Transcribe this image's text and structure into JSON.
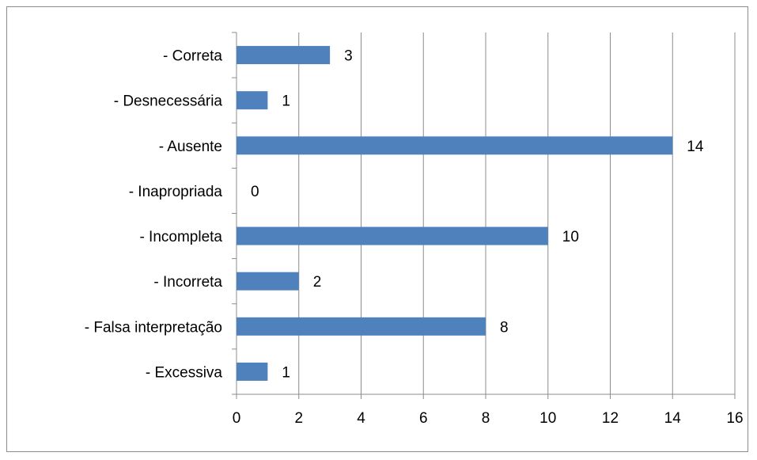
{
  "chart_data": {
    "type": "bar",
    "orientation": "horizontal",
    "categories": [
      "- Correta",
      "- Desnecessária",
      "- Ausente",
      "- Inapropriada",
      "- Incompleta",
      "- Incorreta",
      "- Falsa interpretação",
      "- Excessiva"
    ],
    "values": [
      3,
      1,
      14,
      0,
      10,
      2,
      8,
      1
    ],
    "data_labels": [
      "3",
      "1",
      "14",
      "0",
      "10",
      "2",
      "8",
      "1"
    ],
    "title": "",
    "xlabel": "",
    "ylabel": "",
    "xlim": [
      0,
      16
    ],
    "x_ticks": [
      "0",
      "2",
      "4",
      "6",
      "8",
      "10",
      "12",
      "14",
      "16"
    ],
    "grid": "vertical",
    "legend": "none",
    "bar_color": "#4f81bd",
    "grid_color": "#8c8c8c"
  }
}
